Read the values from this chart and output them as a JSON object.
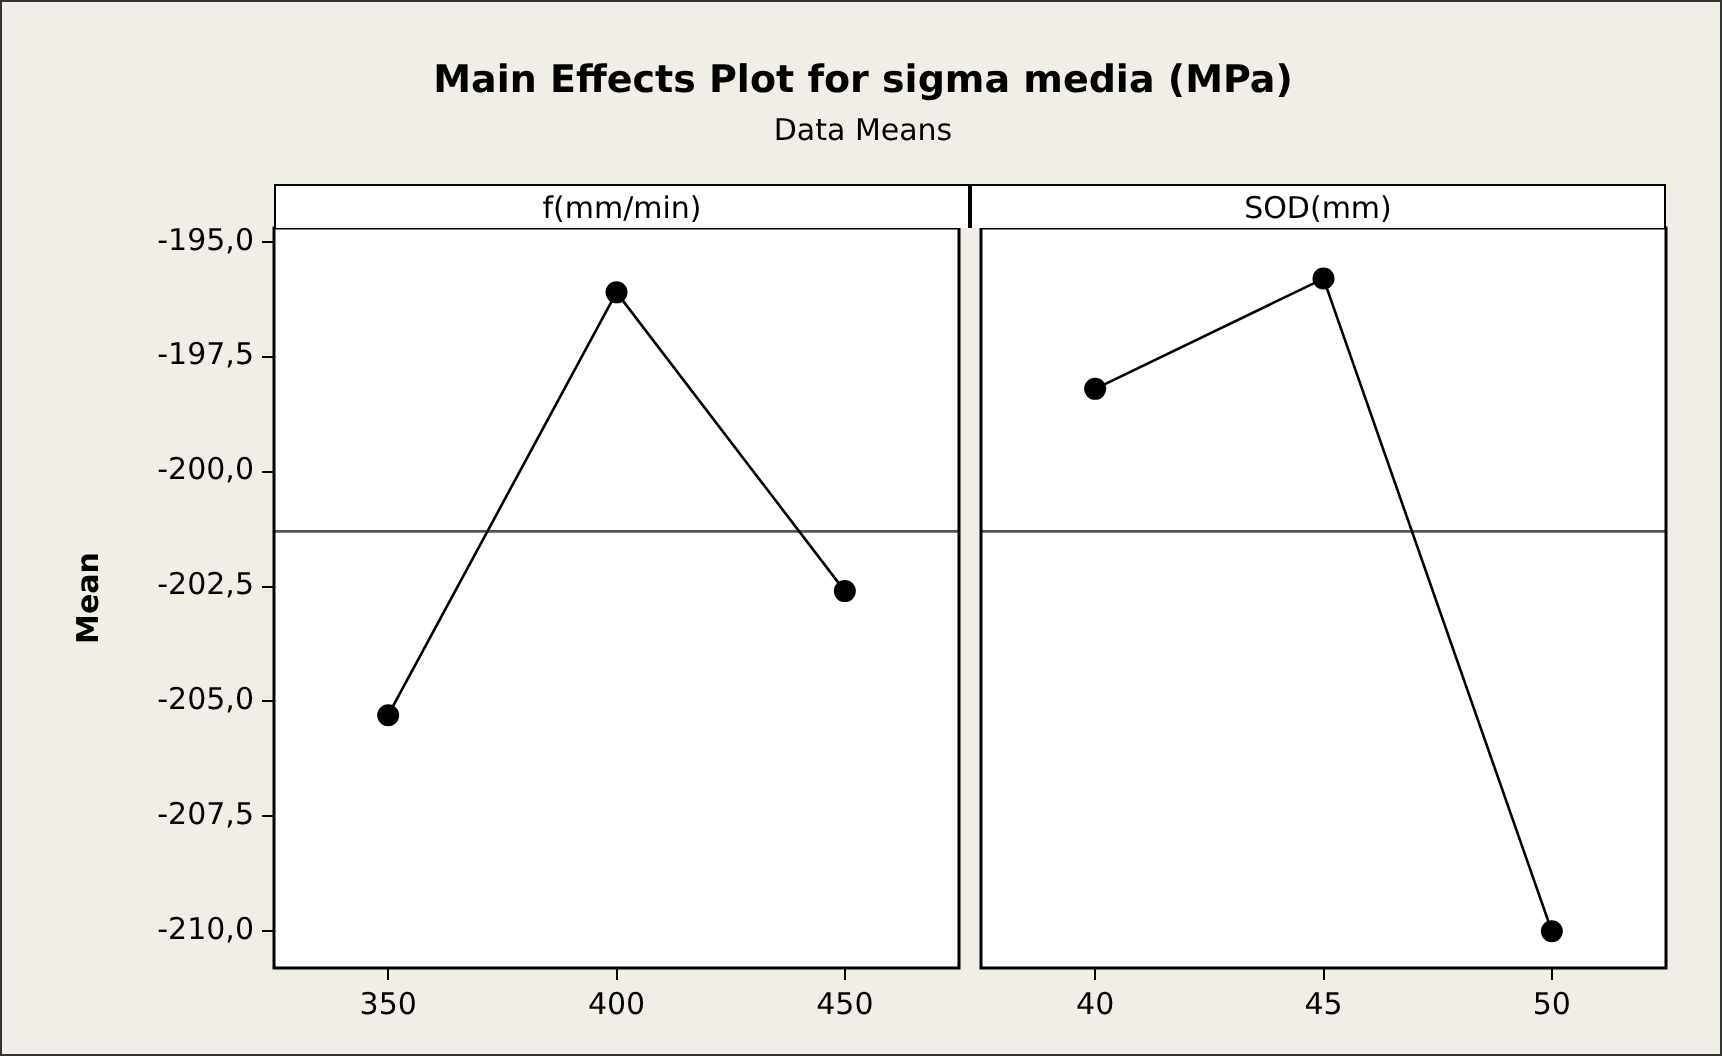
{
  "chart_data": [
    {
      "type": "line",
      "title": "Main Effects Plot for sigma media (MPa)",
      "subtitle": "Data Means",
      "xlabel": "f(mm/min)",
      "ylabel": "Mean",
      "x": [
        350,
        400,
        450
      ],
      "series": [
        {
          "color": "#000000",
          "values": [
            -205.3,
            -196.1,
            -202.6
          ]
        }
      ],
      "xlim": [
        325,
        475
      ],
      "xticks": [
        350,
        400,
        450
      ],
      "ylim": [
        -210.8,
        -194.7
      ],
      "yticks": [
        {
          "value": -195,
          "label": "-195,0"
        },
        {
          "value": -197.5,
          "label": "-197,5"
        },
        {
          "value": -200,
          "label": "-200,0"
        },
        {
          "value": -202.5,
          "label": "-202,5"
        },
        {
          "value": -205,
          "label": "-205,0"
        },
        {
          "value": -207.5,
          "label": "-207,5"
        },
        {
          "value": -210,
          "label": "-210,0"
        }
      ],
      "ref_lines": [
        {
          "axis": "y",
          "value": -201.3,
          "color": "#555555"
        }
      ],
      "marker": "circle",
      "line_style": "solid"
    },
    {
      "type": "line",
      "xlabel": "SOD(mm)",
      "x": [
        40,
        45,
        50
      ],
      "series": [
        {
          "color": "#000000",
          "values": [
            -198.2,
            -195.8,
            -210.0
          ]
        }
      ],
      "xlim": [
        37.5,
        52.5
      ],
      "xticks": [
        40,
        45,
        50
      ],
      "ylim": [
        -210.8,
        -194.7
      ],
      "ref_lines": [
        {
          "axis": "y",
          "value": -201.3,
          "color": "#555555"
        }
      ],
      "marker": "circle",
      "line_style": "solid",
      "tick_labels": "x"
    }
  ]
}
